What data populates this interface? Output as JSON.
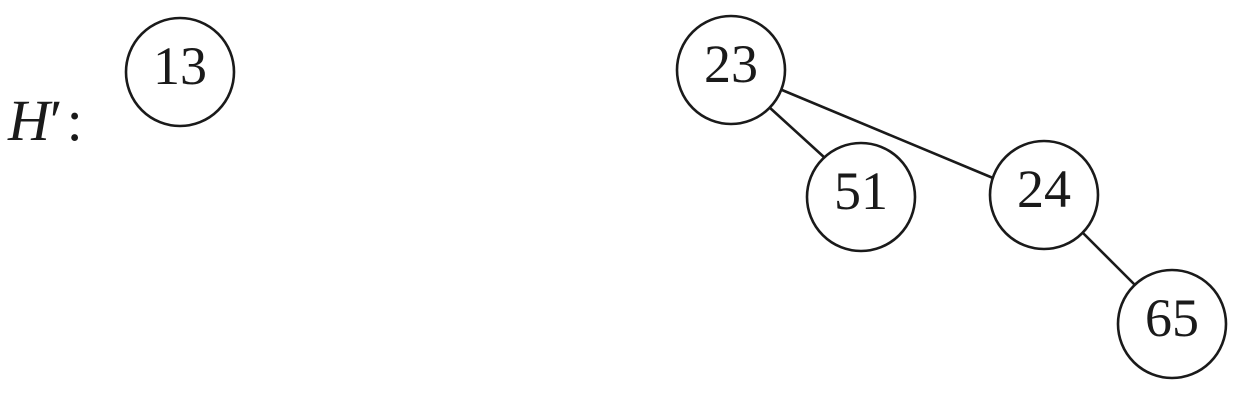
{
  "heap_label": {
    "name": "H",
    "prime": "′",
    "colon": ":"
  },
  "nodes": {
    "n13": "13",
    "n23": "23",
    "n51": "51",
    "n24": "24",
    "n65": "65"
  },
  "edges": [
    [
      "n23",
      "n51"
    ],
    [
      "n23",
      "n24"
    ],
    [
      "n24",
      "n65"
    ]
  ]
}
